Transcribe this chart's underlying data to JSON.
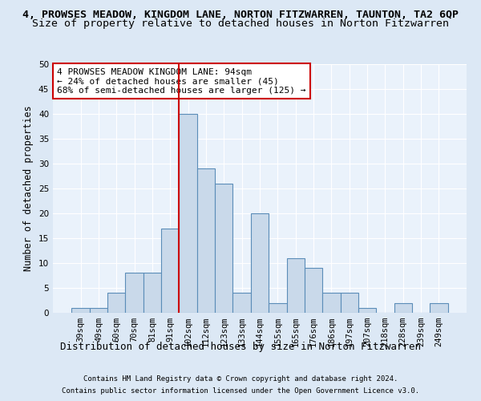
{
  "title": "4, PROWSES MEADOW, KINGDOM LANE, NORTON FITZWARREN, TAUNTON, TA2 6QP",
  "subtitle": "Size of property relative to detached houses in Norton Fitzwarren",
  "xlabel": "Distribution of detached houses by size in Norton Fitzwarren",
  "ylabel": "Number of detached properties",
  "footnote1": "Contains HM Land Registry data © Crown copyright and database right 2024.",
  "footnote2": "Contains public sector information licensed under the Open Government Licence v3.0.",
  "annotation_line1": "4 PROWSES MEADOW KINGDOM LANE: 94sqm",
  "annotation_line2": "← 24% of detached houses are smaller (45)",
  "annotation_line3": "68% of semi-detached houses are larger (125) →",
  "bar_labels": [
    "39sqm",
    "49sqm",
    "60sqm",
    "70sqm",
    "81sqm",
    "91sqm",
    "102sqm",
    "112sqm",
    "123sqm",
    "133sqm",
    "144sqm",
    "155sqm",
    "165sqm",
    "176sqm",
    "186sqm",
    "197sqm",
    "207sqm",
    "218sqm",
    "228sqm",
    "239sqm",
    "249sqm"
  ],
  "bar_values": [
    1,
    1,
    4,
    8,
    8,
    17,
    40,
    29,
    26,
    4,
    20,
    2,
    11,
    9,
    4,
    4,
    1,
    0,
    2,
    0,
    2
  ],
  "bar_color": "#c9d9ea",
  "bar_edge_color": "#5b8db8",
  "red_line_x": 6,
  "ylim": [
    0,
    50
  ],
  "yticks": [
    0,
    5,
    10,
    15,
    20,
    25,
    30,
    35,
    40,
    45,
    50
  ],
  "bg_color": "#dce8f5",
  "plot_bg_color": "#eaf2fb",
  "annotation_box_color": "#ffffff",
  "annotation_box_edge": "#cc0000",
  "red_line_color": "#cc0000",
  "title_fontsize": 9.5,
  "subtitle_fontsize": 9.5,
  "xlabel_fontsize": 9,
  "ylabel_fontsize": 8.5,
  "tick_fontsize": 7.5,
  "annotation_fontsize": 8,
  "footnote_fontsize": 6.5
}
